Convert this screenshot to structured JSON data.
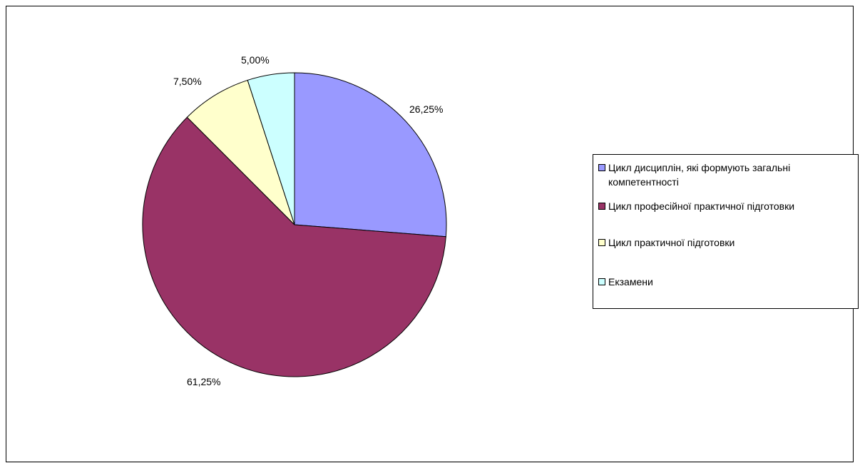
{
  "chart_data": {
    "type": "pie",
    "categories": [
      "Цикл дисциплін, які формують загальні компетентності",
      "Цикл професійної практичної підготовки",
      "Цикл практичної підготовки",
      "Екзамени"
    ],
    "values": [
      26.25,
      61.25,
      7.5,
      5.0
    ],
    "data_labels": [
      "26,25%",
      "61,25%",
      "7,50%",
      "5,00%"
    ],
    "colors": [
      "#9999FF",
      "#993366",
      "#FFFFCC",
      "#CCFFFF"
    ],
    "title": "",
    "legend_position": "right",
    "start_angle": "12 o'clock, clockwise"
  }
}
